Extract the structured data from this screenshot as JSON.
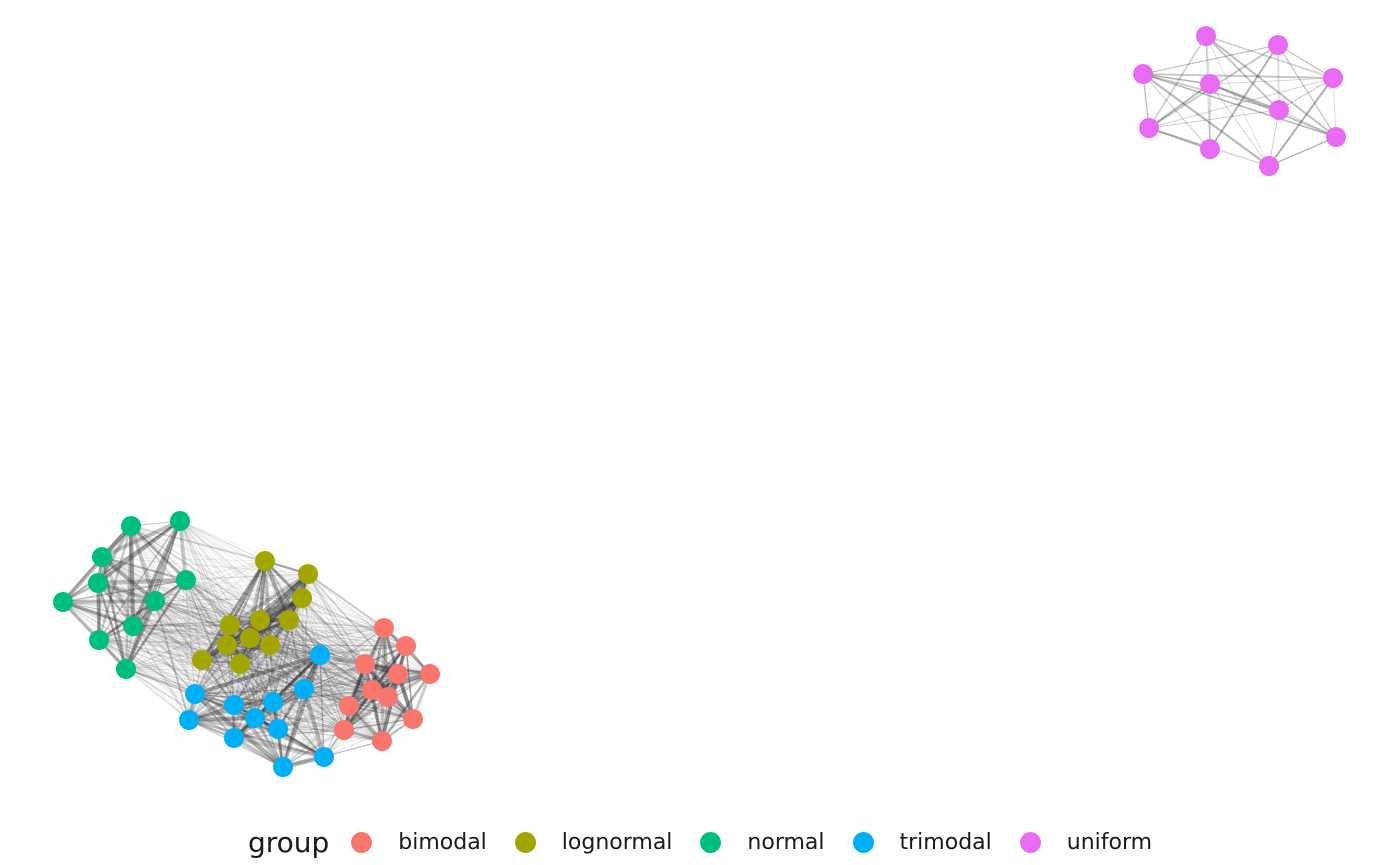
{
  "chart_data": {
    "type": "network",
    "legend_position": "bottom",
    "legend": {
      "title": "group",
      "items": [
        {
          "label": "bimodal",
          "color": "#F8766D"
        },
        {
          "label": "lognormal",
          "color": "#A3A500"
        },
        {
          "label": "normal",
          "color": "#00BF7D"
        },
        {
          "label": "trimodal",
          "color": "#00B0F6"
        },
        {
          "label": "uniform",
          "color": "#E76BF3"
        }
      ]
    },
    "groups": [
      {
        "name": "bimodal",
        "color": "#F8766D",
        "node_count": 11
      },
      {
        "name": "lognormal",
        "color": "#A3A500",
        "node_count": 11
      },
      {
        "name": "normal",
        "color": "#00BF7D",
        "node_count": 10
      },
      {
        "name": "trimodal",
        "color": "#00B0F6",
        "node_count": 11
      },
      {
        "name": "uniform",
        "color": "#E76BF3",
        "node_count": 10
      }
    ],
    "edge_color": "#333333"
  }
}
